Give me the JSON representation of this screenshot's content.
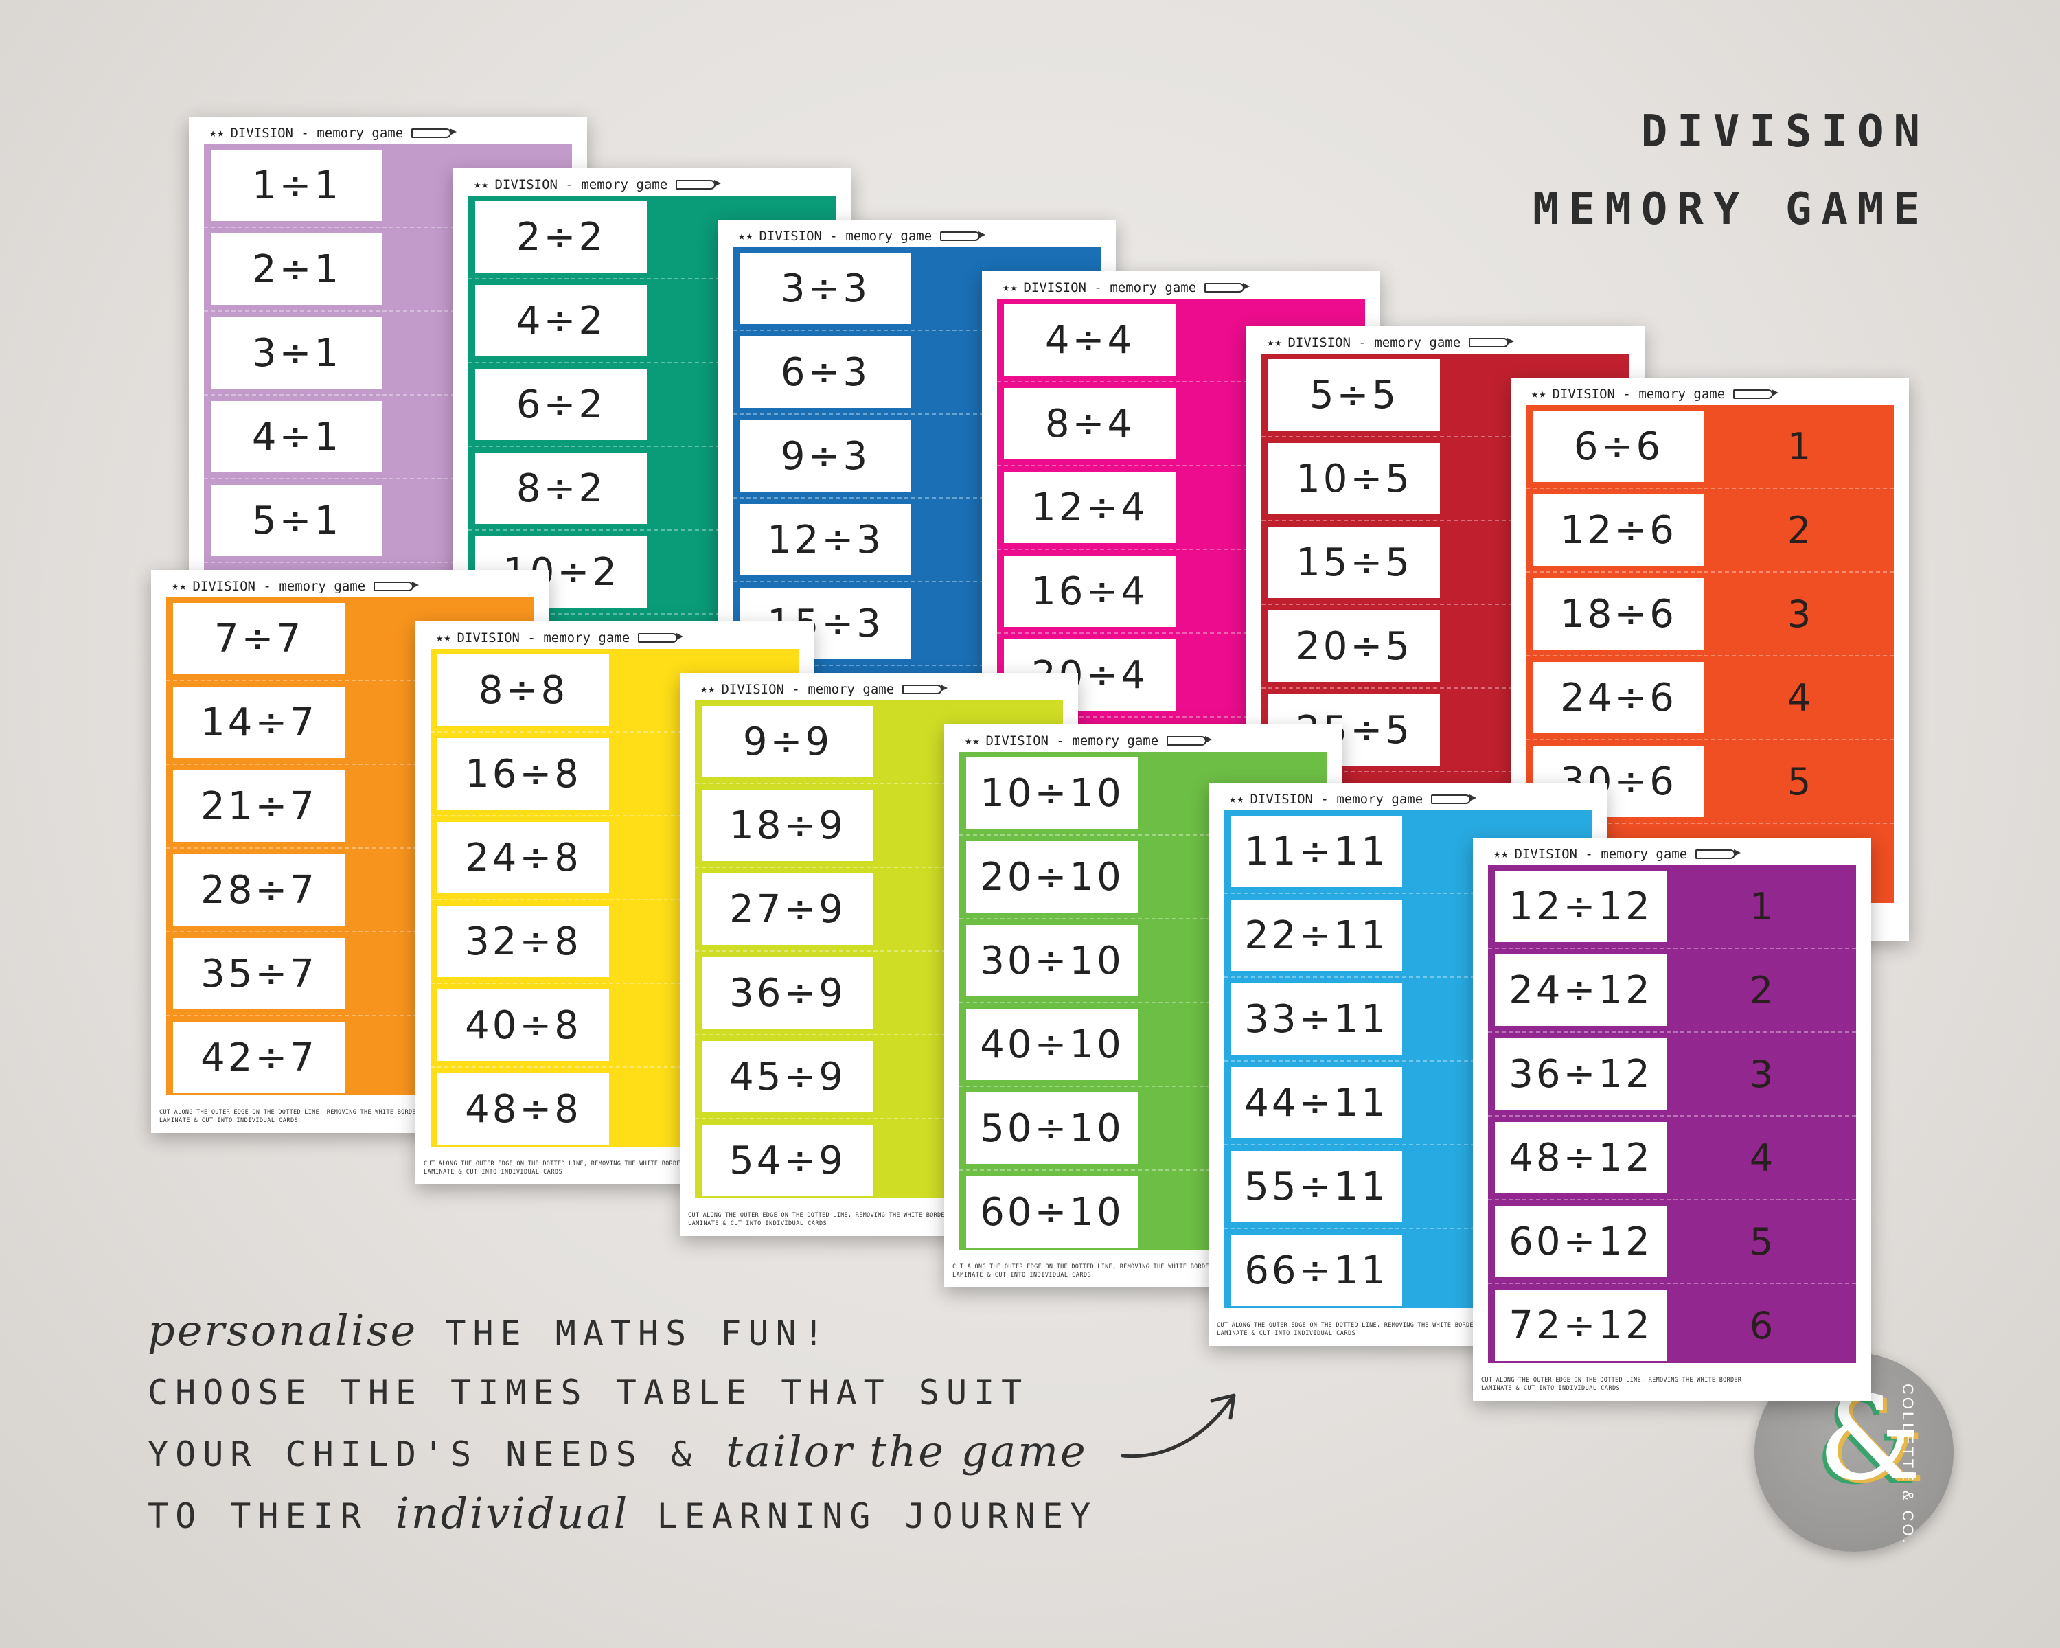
{
  "title": {
    "line1": "DIVISION",
    "line2": "MEMORY GAME"
  },
  "sheet_header": "DIVISION - memory game",
  "footer": {
    "line1": "CUT ALONG THE OUTER EDGE ON THE DOTTED LINE, REMOVING THE WHITE BORDER",
    "line2": "LAMINATE & CUT INTO INDIVIDUAL CARDS"
  },
  "sheets": [
    {
      "color": "#c39bcb",
      "rows": [
        {
          "q": "1÷1",
          "a": ""
        },
        {
          "q": "2÷1",
          "a": ""
        },
        {
          "q": "3÷1",
          "a": ""
        },
        {
          "q": "4÷1",
          "a": ""
        },
        {
          "q": "5÷1",
          "a": ""
        }
      ]
    },
    {
      "color": "#0a9b78",
      "rows": [
        {
          "q": "2÷2",
          "a": ""
        },
        {
          "q": "4÷2",
          "a": ""
        },
        {
          "q": "6÷2",
          "a": ""
        },
        {
          "q": "8÷2",
          "a": ""
        },
        {
          "q": "10÷2",
          "a": ""
        }
      ]
    },
    {
      "color": "#1a6fb5",
      "rows": [
        {
          "q": "3÷3",
          "a": ""
        },
        {
          "q": "6÷3",
          "a": ""
        },
        {
          "q": "9÷3",
          "a": ""
        },
        {
          "q": "12÷3",
          "a": ""
        },
        {
          "q": "15÷3",
          "a": ""
        }
      ]
    },
    {
      "color": "#ec0c8d",
      "rows": [
        {
          "q": "4÷4",
          "a": ""
        },
        {
          "q": "8÷4",
          "a": ""
        },
        {
          "q": "12÷4",
          "a": ""
        },
        {
          "q": "16÷4",
          "a": ""
        },
        {
          "q": "20÷4",
          "a": ""
        }
      ]
    },
    {
      "color": "#c0202e",
      "rows": [
        {
          "q": "5÷5",
          "a": ""
        },
        {
          "q": "10÷5",
          "a": ""
        },
        {
          "q": "15÷5",
          "a": ""
        },
        {
          "q": "20÷5",
          "a": ""
        },
        {
          "q": "25÷5",
          "a": ""
        }
      ]
    },
    {
      "color": "#f04e23",
      "rows": [
        {
          "q": "6÷6",
          "a": "1"
        },
        {
          "q": "12÷6",
          "a": "2"
        },
        {
          "q": "18÷6",
          "a": "3"
        },
        {
          "q": "24÷6",
          "a": "4"
        },
        {
          "q": "30÷6",
          "a": "5"
        }
      ]
    },
    {
      "color": "#f7941d",
      "rows": [
        {
          "q": "7÷7",
          "a": ""
        },
        {
          "q": "14÷7",
          "a": ""
        },
        {
          "q": "21÷7",
          "a": ""
        },
        {
          "q": "28÷7",
          "a": ""
        },
        {
          "q": "35÷7",
          "a": ""
        },
        {
          "q": "42÷7",
          "a": ""
        }
      ]
    },
    {
      "color": "#ffde17",
      "rows": [
        {
          "q": "8÷8",
          "a": ""
        },
        {
          "q": "16÷8",
          "a": ""
        },
        {
          "q": "24÷8",
          "a": ""
        },
        {
          "q": "32÷8",
          "a": ""
        },
        {
          "q": "40÷8",
          "a": ""
        },
        {
          "q": "48÷8",
          "a": ""
        }
      ]
    },
    {
      "color": "#cfdd25",
      "rows": [
        {
          "q": "9÷9",
          "a": ""
        },
        {
          "q": "18÷9",
          "a": ""
        },
        {
          "q": "27÷9",
          "a": ""
        },
        {
          "q": "36÷9",
          "a": ""
        },
        {
          "q": "45÷9",
          "a": ""
        },
        {
          "q": "54÷9",
          "a": ""
        }
      ]
    },
    {
      "color": "#6dbe45",
      "rows": [
        {
          "q": "10÷10",
          "a": ""
        },
        {
          "q": "20÷10",
          "a": ""
        },
        {
          "q": "30÷10",
          "a": ""
        },
        {
          "q": "40÷10",
          "a": ""
        },
        {
          "q": "50÷10",
          "a": ""
        },
        {
          "q": "60÷10",
          "a": ""
        }
      ]
    },
    {
      "color": "#27aae1",
      "rows": [
        {
          "q": "11÷11",
          "a": ""
        },
        {
          "q": "22÷11",
          "a": ""
        },
        {
          "q": "33÷11",
          "a": ""
        },
        {
          "q": "44÷11",
          "a": ""
        },
        {
          "q": "55÷11",
          "a": ""
        },
        {
          "q": "66÷11",
          "a": ""
        }
      ]
    },
    {
      "color": "#92278f",
      "rows": [
        {
          "q": "12÷12",
          "a": "1"
        },
        {
          "q": "24÷12",
          "a": "2"
        },
        {
          "q": "36÷12",
          "a": "3"
        },
        {
          "q": "48÷12",
          "a": "4"
        },
        {
          "q": "60÷12",
          "a": "5"
        },
        {
          "q": "72÷12",
          "a": "6"
        }
      ]
    }
  ],
  "tagline": {
    "l1_script": "personalise",
    "l1_text": " THE MATHS FUN!",
    "l2": "CHOOSE THE TIMES TABLE THAT SUIT",
    "l3_text": "YOUR CHILD'S NEEDS & ",
    "l3_script": "tailor the game",
    "l4_a": "TO THEIR ",
    "l4_script": "individual",
    "l4_b": " LEARNING JOURNEY"
  },
  "logo": {
    "mark": "&",
    "text": "COLLETTE & CO."
  }
}
